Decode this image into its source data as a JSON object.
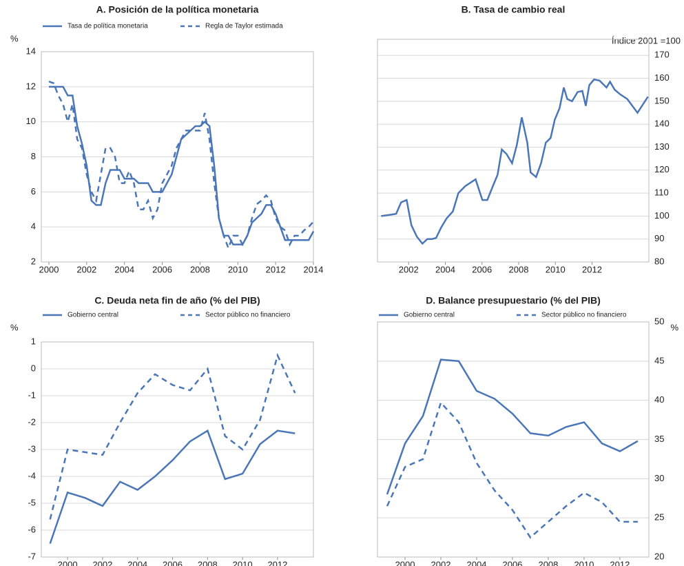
{
  "chart_data": [
    {
      "type": "line",
      "title": "A. Posición de la política monetaria",
      "unit_label": "%",
      "axis_side": "left",
      "x": [
        2000,
        2000.25,
        2000.5,
        2000.75,
        2001,
        2001.25,
        2001.5,
        2001.75,
        2002,
        2002.25,
        2002.5,
        2002.75,
        2003,
        2003.25,
        2003.5,
        2003.75,
        2004,
        2004.25,
        2004.5,
        2004.75,
        2005,
        2005.25,
        2005.5,
        2005.75,
        2006,
        2006.25,
        2006.5,
        2006.75,
        2007,
        2007.25,
        2007.5,
        2007.75,
        2008,
        2008.25,
        2008.5,
        2008.75,
        2009,
        2009.25,
        2009.5,
        2009.75,
        2010,
        2010.25,
        2010.5,
        2010.75,
        2011,
        2011.25,
        2011.5,
        2011.75,
        2012,
        2012.25,
        2012.5,
        2012.75,
        2013,
        2013.25,
        2013.5,
        2013.75,
        2014
      ],
      "series": [
        {
          "name": "Tasa de política monetaria",
          "color": "#4a76b8",
          "dash": false,
          "values": [
            12,
            12,
            12,
            12,
            11.5,
            11.5,
            9.75,
            8.75,
            7.5,
            5.5,
            5.25,
            5.25,
            6.5,
            7.25,
            7.25,
            7.25,
            6.75,
            6.75,
            6.75,
            6.5,
            6.5,
            6.5,
            6,
            6,
            6,
            6.5,
            7,
            8,
            9,
            9.25,
            9.5,
            9.75,
            9.75,
            10,
            9.75,
            7.5,
            4.5,
            3.5,
            3.5,
            3,
            3,
            3,
            3.5,
            4.25,
            4.5,
            4.75,
            5.25,
            5.25,
            4.75,
            4,
            3.25,
            3.25,
            3.25,
            3.25,
            3.25,
            3.25,
            3.75
          ]
        },
        {
          "name": "Regla de Taylor estimada",
          "color": "#4a76b8",
          "dash": true,
          "values": [
            12.3,
            12.2,
            11.5,
            11,
            10,
            11,
            9,
            8.5,
            7,
            6,
            5.5,
            7,
            8.5,
            8.5,
            8,
            6.5,
            6.5,
            7.2,
            6.5,
            5,
            5,
            5.5,
            4.5,
            5,
            6.5,
            7,
            7.5,
            8.5,
            9,
            9.5,
            9.5,
            9.5,
            9.5,
            10.5,
            9,
            6.5,
            4.5,
            3.5,
            2.8,
            3.5,
            3.5,
            3,
            3.5,
            4.5,
            5.3,
            5.5,
            5.8,
            5.5,
            4.5,
            4,
            3.8,
            3,
            3.5,
            3.5,
            3.8,
            4,
            4.3
          ]
        }
      ],
      "xlim": [
        1999.6,
        2014
      ],
      "xticks": [
        2000,
        2002,
        2004,
        2006,
        2008,
        2010,
        2012,
        2014
      ],
      "ylim": [
        2,
        14
      ],
      "yticks": [
        2,
        4,
        6,
        8,
        10,
        12,
        14
      ],
      "grid": true
    },
    {
      "type": "line",
      "title": "B. Tasa de cambio real",
      "unit_label": "Índice 2001 =100",
      "axis_side": "right",
      "x": [
        2000.5,
        2000.95,
        2001.32,
        2001.59,
        2001.89,
        2002.15,
        2002.45,
        2002.75,
        2003.02,
        2003.28,
        2003.5,
        2003.77,
        2004.07,
        2004.41,
        2004.71,
        2005.08,
        2005.65,
        2006.02,
        2006.29,
        2006.59,
        2006.85,
        2007.08,
        2007.34,
        2007.64,
        2007.9,
        2008.17,
        2008.47,
        2008.65,
        2008.95,
        2009.22,
        2009.48,
        2009.74,
        2009.97,
        2010.23,
        2010.46,
        2010.65,
        2010.91,
        2011.21,
        2011.47,
        2011.66,
        2011.85,
        2012.11,
        2012.41,
        2012.79,
        2012.98,
        2013.24,
        2013.54,
        2013.92,
        2014.48,
        2015.05
      ],
      "series": [
        {
          "color": "#4a76b8",
          "dash": false,
          "values": [
            100,
            100.5,
            101,
            106,
            107,
            96,
            91,
            88,
            90,
            90,
            90.5,
            95,
            99,
            102,
            110,
            113,
            116,
            107,
            107,
            113,
            118,
            129,
            127,
            123,
            131,
            143,
            132,
            119,
            117,
            123,
            132,
            134,
            142,
            147,
            156,
            151,
            150,
            154,
            154.5,
            148,
            157,
            159.5,
            159,
            156,
            158.5,
            155,
            153,
            151,
            145,
            152
          ]
        }
      ],
      "xlim": [
        2000.3,
        2015.1
      ],
      "xticks": [
        2002,
        2004,
        2006,
        2008,
        2010,
        2012
      ],
      "ylim": [
        80,
        177
      ],
      "yticks": [
        80,
        90,
        100,
        110,
        120,
        130,
        140,
        150,
        160,
        170
      ],
      "grid": true
    },
    {
      "type": "line",
      "title": "C. Deuda neta fin de año (% del PIB)",
      "unit_label": "%",
      "axis_side": "left",
      "x": [
        1999,
        2000,
        2001,
        2002,
        2003,
        2004,
        2005,
        2006,
        2007,
        2008,
        2009,
        2010,
        2011,
        2012,
        2013
      ],
      "series": [
        {
          "name": "Gobierno central",
          "color": "#4a76b8",
          "dash": false,
          "values": [
            -6.5,
            -4.6,
            -4.8,
            -5.1,
            -4.2,
            -4.5,
            -4,
            -3.4,
            -2.7,
            -2.3,
            -4.1,
            -3.9,
            -2.8,
            -2.3,
            -2.4
          ]
        },
        {
          "name": "Sector público no financiero",
          "color": "#4a76b8",
          "dash": true,
          "values": [
            -5.6,
            -3,
            -3.1,
            -3.2,
            -2,
            -0.9,
            -0.2,
            -0.6,
            -0.8,
            0,
            -2.5,
            -3,
            -1.9,
            0.5,
            -0.9
          ]
        }
      ],
      "xlim": [
        1998.5,
        2014.05
      ],
      "xticks": [
        2000,
        2002,
        2004,
        2006,
        2008,
        2010,
        2012
      ],
      "ylim": [
        -7,
        1
      ],
      "yticks": [
        -7,
        -6,
        -5,
        -4,
        -3,
        -2,
        -1,
        0,
        1
      ],
      "grid": true
    },
    {
      "type": "line",
      "title": "D. Balance presupuestario (% del PIB)",
      "unit_label": "%",
      "axis_side": "right",
      "x": [
        1999,
        2000,
        2001,
        2002,
        2003,
        2004,
        2005,
        2006,
        2007,
        2008,
        2009,
        2010,
        2011,
        2012,
        2013
      ],
      "series": [
        {
          "name": "Gobierno central",
          "color": "#4a76b8",
          "dash": false,
          "values": [
            28,
            34.5,
            38,
            45.2,
            45,
            41.2,
            40.2,
            38.3,
            35.8,
            35.5,
            36.6,
            37.2,
            34.5,
            33.5,
            34.8
          ]
        },
        {
          "name": "Sector público no financiero",
          "color": "#4a76b8",
          "dash": true,
          "values": [
            26.5,
            31.5,
            32.5,
            39.7,
            37.2,
            32,
            28.5,
            26,
            22.5,
            24.5,
            26.5,
            28.2,
            27,
            24.5,
            24.5
          ]
        }
      ],
      "xlim": [
        1998.46,
        2013.62
      ],
      "xticks": [
        2000,
        2002,
        2004,
        2006,
        2008,
        2010,
        2012
      ],
      "ylim": [
        20,
        50
      ],
      "yticks": [
        20,
        25,
        30,
        35,
        40,
        45,
        50
      ],
      "grid": true
    }
  ]
}
